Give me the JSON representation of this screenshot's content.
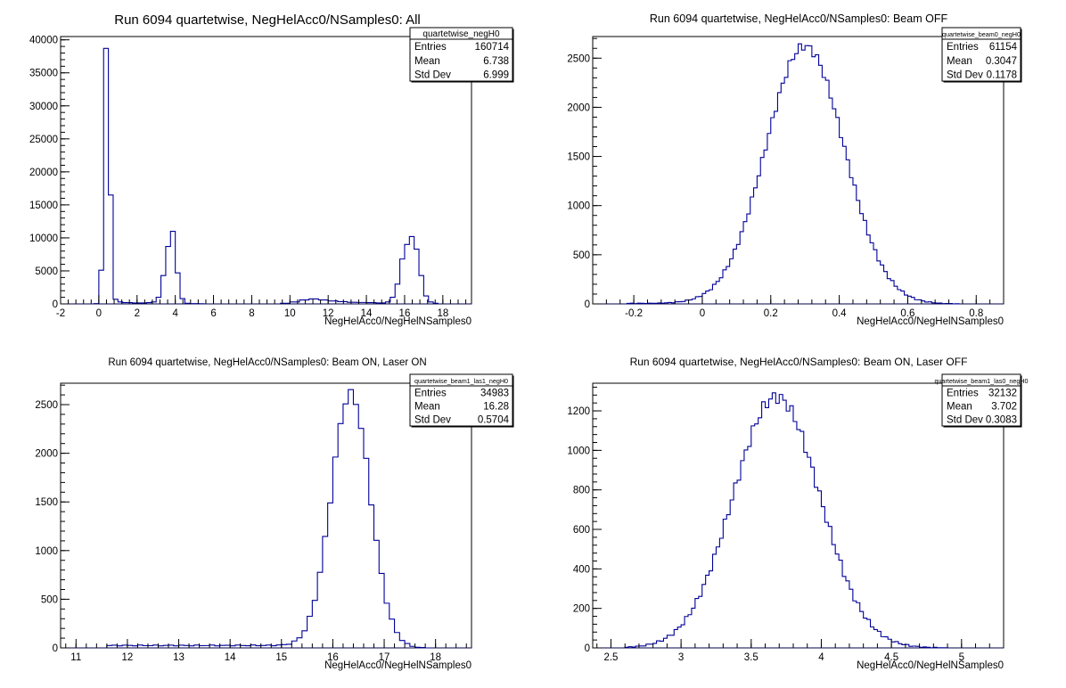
{
  "chart_data": [
    {
      "type": "histogram",
      "title": "Run 6094 quartetwise, NegHelAcc0/NSamples0: All",
      "xlabel": "NegHelAcc0/NegHelNSamples0",
      "ylabel": "",
      "xlim": [
        -2,
        19.5
      ],
      "ylim": [
        0,
        40500
      ],
      "xticks": [
        -2,
        0,
        2,
        4,
        6,
        8,
        10,
        12,
        14,
        16,
        18
      ],
      "yticks": [
        0,
        5000,
        10000,
        15000,
        20000,
        25000,
        30000,
        35000,
        40000
      ],
      "stats": {
        "name": "quartetwise_negH0",
        "rows": [
          {
            "label": "Entries",
            "value": "160714"
          },
          {
            "label": "Mean",
            "value": "6.738"
          },
          {
            "label": "Std Dev",
            "value": "6.999"
          }
        ]
      },
      "bins": [
        [
          -0.25,
          0,
          50
        ],
        [
          0,
          0.25,
          5100
        ],
        [
          0.25,
          0.5,
          38700
        ],
        [
          0.5,
          0.75,
          16500
        ],
        [
          0.75,
          1.0,
          700
        ],
        [
          1.0,
          1.25,
          300
        ],
        [
          1.25,
          1.5,
          200
        ],
        [
          1.5,
          1.75,
          200
        ],
        [
          1.75,
          2.0,
          150
        ],
        [
          2.0,
          2.25,
          150
        ],
        [
          2.25,
          2.5,
          150
        ],
        [
          2.5,
          2.75,
          200
        ],
        [
          2.75,
          3.0,
          300
        ],
        [
          3.0,
          3.25,
          1000
        ],
        [
          3.25,
          3.5,
          4300
        ],
        [
          3.5,
          3.75,
          8700
        ],
        [
          3.75,
          4.0,
          11000
        ],
        [
          4.0,
          4.25,
          4700
        ],
        [
          4.25,
          4.5,
          800
        ],
        [
          4.5,
          4.75,
          100
        ],
        [
          4.75,
          5.0,
          50
        ],
        [
          5.0,
          5.25,
          50
        ],
        [
          5.25,
          5.5,
          30
        ],
        [
          9.5,
          10.0,
          100
        ],
        [
          10.0,
          10.5,
          300
        ],
        [
          10.5,
          11.0,
          600
        ],
        [
          11.0,
          11.5,
          750
        ],
        [
          11.5,
          12.0,
          600
        ],
        [
          12.0,
          12.5,
          450
        ],
        [
          12.5,
          13.0,
          350
        ],
        [
          13.0,
          13.5,
          250
        ],
        [
          13.5,
          14.0,
          220
        ],
        [
          14.0,
          14.5,
          200
        ],
        [
          14.5,
          15.0,
          150
        ],
        [
          15.0,
          15.25,
          300
        ],
        [
          15.25,
          15.5,
          1000
        ],
        [
          15.5,
          15.75,
          3000
        ],
        [
          15.75,
          16.0,
          6800
        ],
        [
          16.0,
          16.25,
          9000
        ],
        [
          16.25,
          16.5,
          10200
        ],
        [
          16.5,
          16.75,
          8300
        ],
        [
          16.75,
          17.0,
          4300
        ],
        [
          17.0,
          17.25,
          1200
        ],
        [
          17.25,
          17.5,
          300
        ],
        [
          17.5,
          17.75,
          100
        ]
      ]
    },
    {
      "type": "histogram",
      "title": "Run 6094 quartetwise, NegHelAcc0/NSamples0: Beam OFF",
      "xlabel": "NegHelAcc0/NegHelNSamples0",
      "ylabel": "",
      "xlim": [
        -0.32,
        0.88
      ],
      "ylim": [
        0,
        2720
      ],
      "xticks": [
        -0.2,
        0,
        0.2,
        0.4,
        0.6,
        0.8
      ],
      "yticks": [
        0,
        500,
        1000,
        1500,
        2000,
        2500
      ],
      "stats": {
        "name": "quartetwise_beam0_negH0",
        "rows": [
          {
            "label": "Entries",
            "value": "61154"
          },
          {
            "label": "Mean",
            "value": "0.3047"
          },
          {
            "label": "Std Dev",
            "value": "0.1178"
          }
        ]
      },
      "gauss": {
        "lo": -0.22,
        "hi": 0.75,
        "width": 0.01,
        "mean": 0.3,
        "sigma": 0.115,
        "peak": 2620,
        "floor_left": 5
      }
    },
    {
      "type": "histogram",
      "title": "Run 6094 quartetwise, NegHelAcc0/NSamples0: Beam ON, Laser ON",
      "xlabel": "NegHelAcc0/NegHelNSamples0",
      "ylabel": "",
      "xlim": [
        10.7,
        18.7
      ],
      "ylim": [
        0,
        2720
      ],
      "xticks": [
        11,
        12,
        13,
        14,
        15,
        16,
        17,
        18
      ],
      "yticks": [
        0,
        500,
        1000,
        1500,
        2000,
        2500
      ],
      "stats": {
        "name": "quartetwise_beam1_las1_negH0",
        "rows": [
          {
            "label": "Entries",
            "value": "34983"
          },
          {
            "label": "Mean",
            "value": "16.28"
          },
          {
            "label": "Std Dev",
            "value": "0.5704"
          }
        ]
      },
      "gauss": {
        "lo": 11.6,
        "hi": 17.9,
        "width": 0.1,
        "mean": 16.35,
        "sigma": 0.38,
        "peak": 2610,
        "floor_left": 25
      }
    },
    {
      "type": "histogram",
      "title": "Run 6094 quartetwise, NegHelAcc0/NSamples0: Beam ON, Laser OFF",
      "xlabel": "NegHelAcc0/NegHelNSamples0",
      "ylabel": "",
      "xlim": [
        2.37,
        5.3
      ],
      "ylim": [
        0,
        1340
      ],
      "xticks": [
        2.5,
        3,
        3.5,
        4,
        4.5,
        5
      ],
      "yticks": [
        0,
        200,
        400,
        600,
        800,
        1000,
        1200
      ],
      "stats": {
        "name": "quartetwise_beam1_las0_negH0",
        "rows": [
          {
            "label": "Entries",
            "value": "32132"
          },
          {
            "label": "Mean",
            "value": "3.702"
          },
          {
            "label": "Std Dev",
            "value": "0.3083"
          }
        ]
      },
      "gauss": {
        "lo": 2.6,
        "hi": 4.9,
        "width": 0.025,
        "mean": 3.68,
        "sigma": 0.31,
        "peak": 1270,
        "floor_left": 0
      }
    }
  ]
}
